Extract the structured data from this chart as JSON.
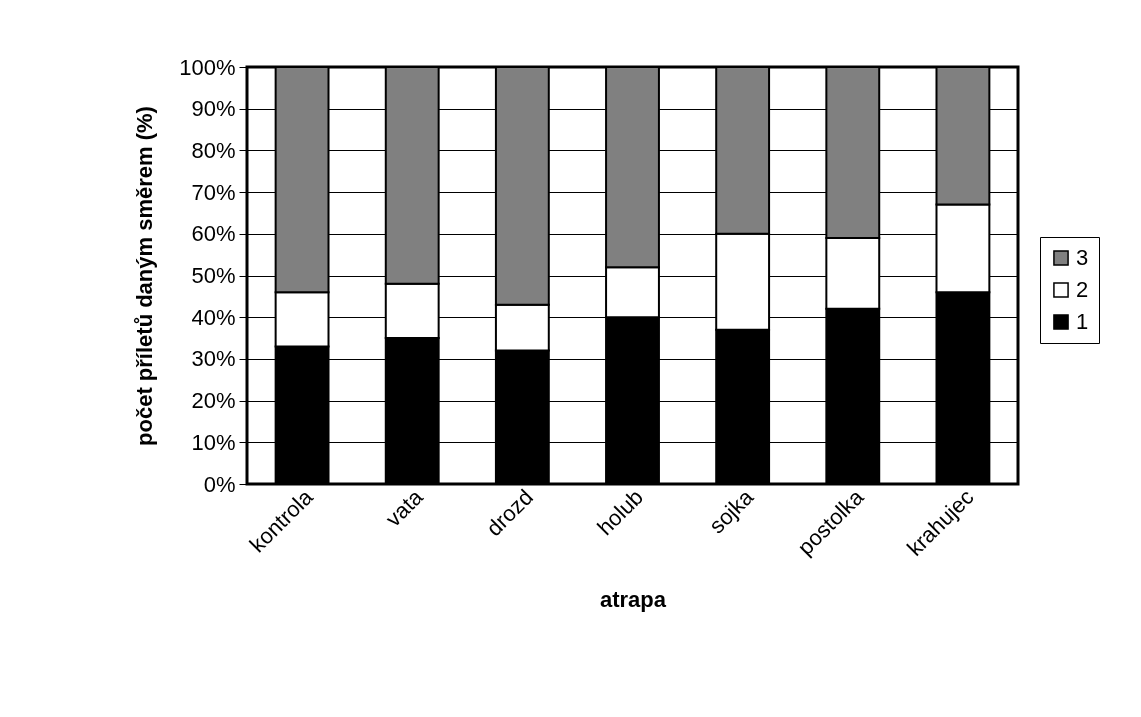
{
  "chart_data": {
    "type": "bar",
    "stacked": true,
    "xlabel": "atrapa",
    "ylabel": "počet příletů daným směrem (%)",
    "categories": [
      "kontrola",
      "vata",
      "drozd",
      "holub",
      "sojka",
      "postolka",
      "krahujec"
    ],
    "series": [
      {
        "name": "1",
        "color": "#000000",
        "values": [
          33,
          35,
          32,
          40,
          37,
          42,
          46
        ]
      },
      {
        "name": "2",
        "color": "#ffffff",
        "values": [
          13,
          13,
          11,
          12,
          23,
          17,
          21
        ]
      },
      {
        "name": "3",
        "color": "#808080",
        "values": [
          54,
          52,
          57,
          48,
          40,
          41,
          33
        ]
      }
    ],
    "ylim": [
      0,
      100
    ],
    "yticks": [
      {
        "value": 0,
        "label": "0%"
      },
      {
        "value": 10,
        "label": "10%"
      },
      {
        "value": 20,
        "label": "20%"
      },
      {
        "value": 30,
        "label": "30%"
      },
      {
        "value": 40,
        "label": "40%"
      },
      {
        "value": 50,
        "label": "50%"
      },
      {
        "value": 60,
        "label": "60%"
      },
      {
        "value": 70,
        "label": "70%"
      },
      {
        "value": 80,
        "label": "80%"
      },
      {
        "value": 90,
        "label": "90%"
      },
      {
        "value": 100,
        "label": "100%"
      }
    ],
    "grid": "y",
    "legend": "right"
  }
}
